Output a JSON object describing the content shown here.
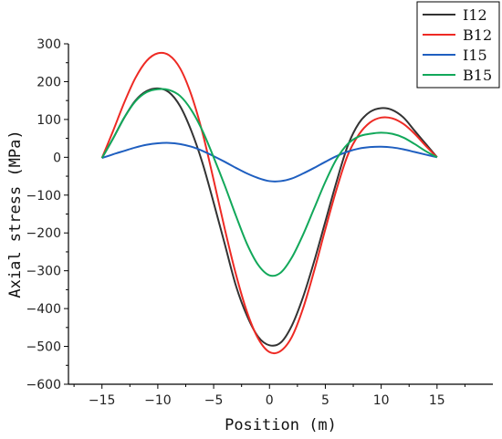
{
  "chart_data": {
    "type": "line",
    "xlabel": "Position (m)",
    "ylabel": "Axial stress (MPa)",
    "xlim": [
      -18,
      20
    ],
    "ylim": [
      -600,
      300
    ],
    "xticks": [
      -15,
      -10,
      -5,
      0,
      5,
      10,
      15
    ],
    "yticks": [
      -600,
      -500,
      -400,
      -300,
      -200,
      -100,
      0,
      100,
      200,
      300
    ],
    "xtick_labels": [
      "−15",
      "−10",
      "−5",
      "0",
      "5",
      "10",
      "15"
    ],
    "ytick_labels": [
      "−600",
      "−500",
      "−400",
      "−300",
      "−200",
      "−100",
      "0",
      "100",
      "200",
      "300"
    ],
    "legend_position": "top-right",
    "series": [
      {
        "name": "I12",
        "color": "#333333",
        "points": [
          [
            -15,
            -2
          ],
          [
            -14,
            50
          ],
          [
            -13,
            105
          ],
          [
            -12,
            150
          ],
          [
            -11,
            175
          ],
          [
            -10,
            182
          ],
          [
            -9,
            172
          ],
          [
            -8,
            135
          ],
          [
            -7,
            70
          ],
          [
            -6,
            -15
          ],
          [
            -5,
            -120
          ],
          [
            -4,
            -230
          ],
          [
            -3,
            -340
          ],
          [
            -2,
            -420
          ],
          [
            -1,
            -475
          ],
          [
            0,
            -497
          ],
          [
            1,
            -490
          ],
          [
            2,
            -445
          ],
          [
            3,
            -370
          ],
          [
            4,
            -275
          ],
          [
            5,
            -170
          ],
          [
            6,
            -65
          ],
          [
            7,
            30
          ],
          [
            8,
            90
          ],
          [
            9,
            120
          ],
          [
            10,
            130
          ],
          [
            11,
            125
          ],
          [
            12,
            105
          ],
          [
            13,
            70
          ],
          [
            14,
            35
          ],
          [
            15,
            0
          ]
        ]
      },
      {
        "name": "B12",
        "color": "#ee2a24",
        "points": [
          [
            -15,
            -2
          ],
          [
            -14,
            70
          ],
          [
            -13,
            145
          ],
          [
            -12,
            210
          ],
          [
            -11,
            255
          ],
          [
            -10,
            275
          ],
          [
            -9,
            270
          ],
          [
            -8,
            235
          ],
          [
            -7,
            165
          ],
          [
            -6,
            65
          ],
          [
            -5,
            -60
          ],
          [
            -4,
            -190
          ],
          [
            -3,
            -310
          ],
          [
            -2,
            -410
          ],
          [
            -1,
            -480
          ],
          [
            0,
            -515
          ],
          [
            1,
            -512
          ],
          [
            2,
            -475
          ],
          [
            3,
            -400
          ],
          [
            4,
            -300
          ],
          [
            5,
            -190
          ],
          [
            6,
            -85
          ],
          [
            7,
            5
          ],
          [
            8,
            60
          ],
          [
            9,
            92
          ],
          [
            10,
            105
          ],
          [
            11,
            103
          ],
          [
            12,
            88
          ],
          [
            13,
            62
          ],
          [
            14,
            30
          ],
          [
            15,
            0
          ]
        ]
      },
      {
        "name": "I15",
        "color": "#1f5fc0",
        "points": [
          [
            -15,
            -2
          ],
          [
            -14,
            8
          ],
          [
            -13,
            17
          ],
          [
            -12,
            26
          ],
          [
            -11,
            33
          ],
          [
            -10,
            37
          ],
          [
            -9,
            38
          ],
          [
            -8,
            35
          ],
          [
            -7,
            28
          ],
          [
            -6,
            17
          ],
          [
            -5,
            3
          ],
          [
            -4,
            -12
          ],
          [
            -3,
            -28
          ],
          [
            -2,
            -43
          ],
          [
            -1,
            -55
          ],
          [
            0,
            -63
          ],
          [
            1,
            -63
          ],
          [
            2,
            -56
          ],
          [
            3,
            -43
          ],
          [
            4,
            -28
          ],
          [
            5,
            -12
          ],
          [
            6,
            3
          ],
          [
            7,
            15
          ],
          [
            8,
            23
          ],
          [
            9,
            27
          ],
          [
            10,
            28
          ],
          [
            11,
            26
          ],
          [
            12,
            21
          ],
          [
            13,
            14
          ],
          [
            14,
            7
          ],
          [
            15,
            0
          ]
        ]
      },
      {
        "name": "B15",
        "color": "#12a85a",
        "points": [
          [
            -15,
            -2
          ],
          [
            -14,
            50
          ],
          [
            -13,
            105
          ],
          [
            -12,
            148
          ],
          [
            -11,
            172
          ],
          [
            -10,
            180
          ],
          [
            -9,
            178
          ],
          [
            -8,
            162
          ],
          [
            -7,
            125
          ],
          [
            -6,
            70
          ],
          [
            -5,
            0
          ],
          [
            -4,
            -75
          ],
          [
            -3,
            -155
          ],
          [
            -2,
            -230
          ],
          [
            -1,
            -285
          ],
          [
            0,
            -312
          ],
          [
            1,
            -305
          ],
          [
            2,
            -265
          ],
          [
            3,
            -205
          ],
          [
            4,
            -135
          ],
          [
            5,
            -65
          ],
          [
            6,
            -5
          ],
          [
            7,
            35
          ],
          [
            8,
            55
          ],
          [
            9,
            62
          ],
          [
            10,
            65
          ],
          [
            11,
            62
          ],
          [
            12,
            52
          ],
          [
            13,
            35
          ],
          [
            14,
            16
          ],
          [
            15,
            0
          ]
        ]
      }
    ]
  }
}
